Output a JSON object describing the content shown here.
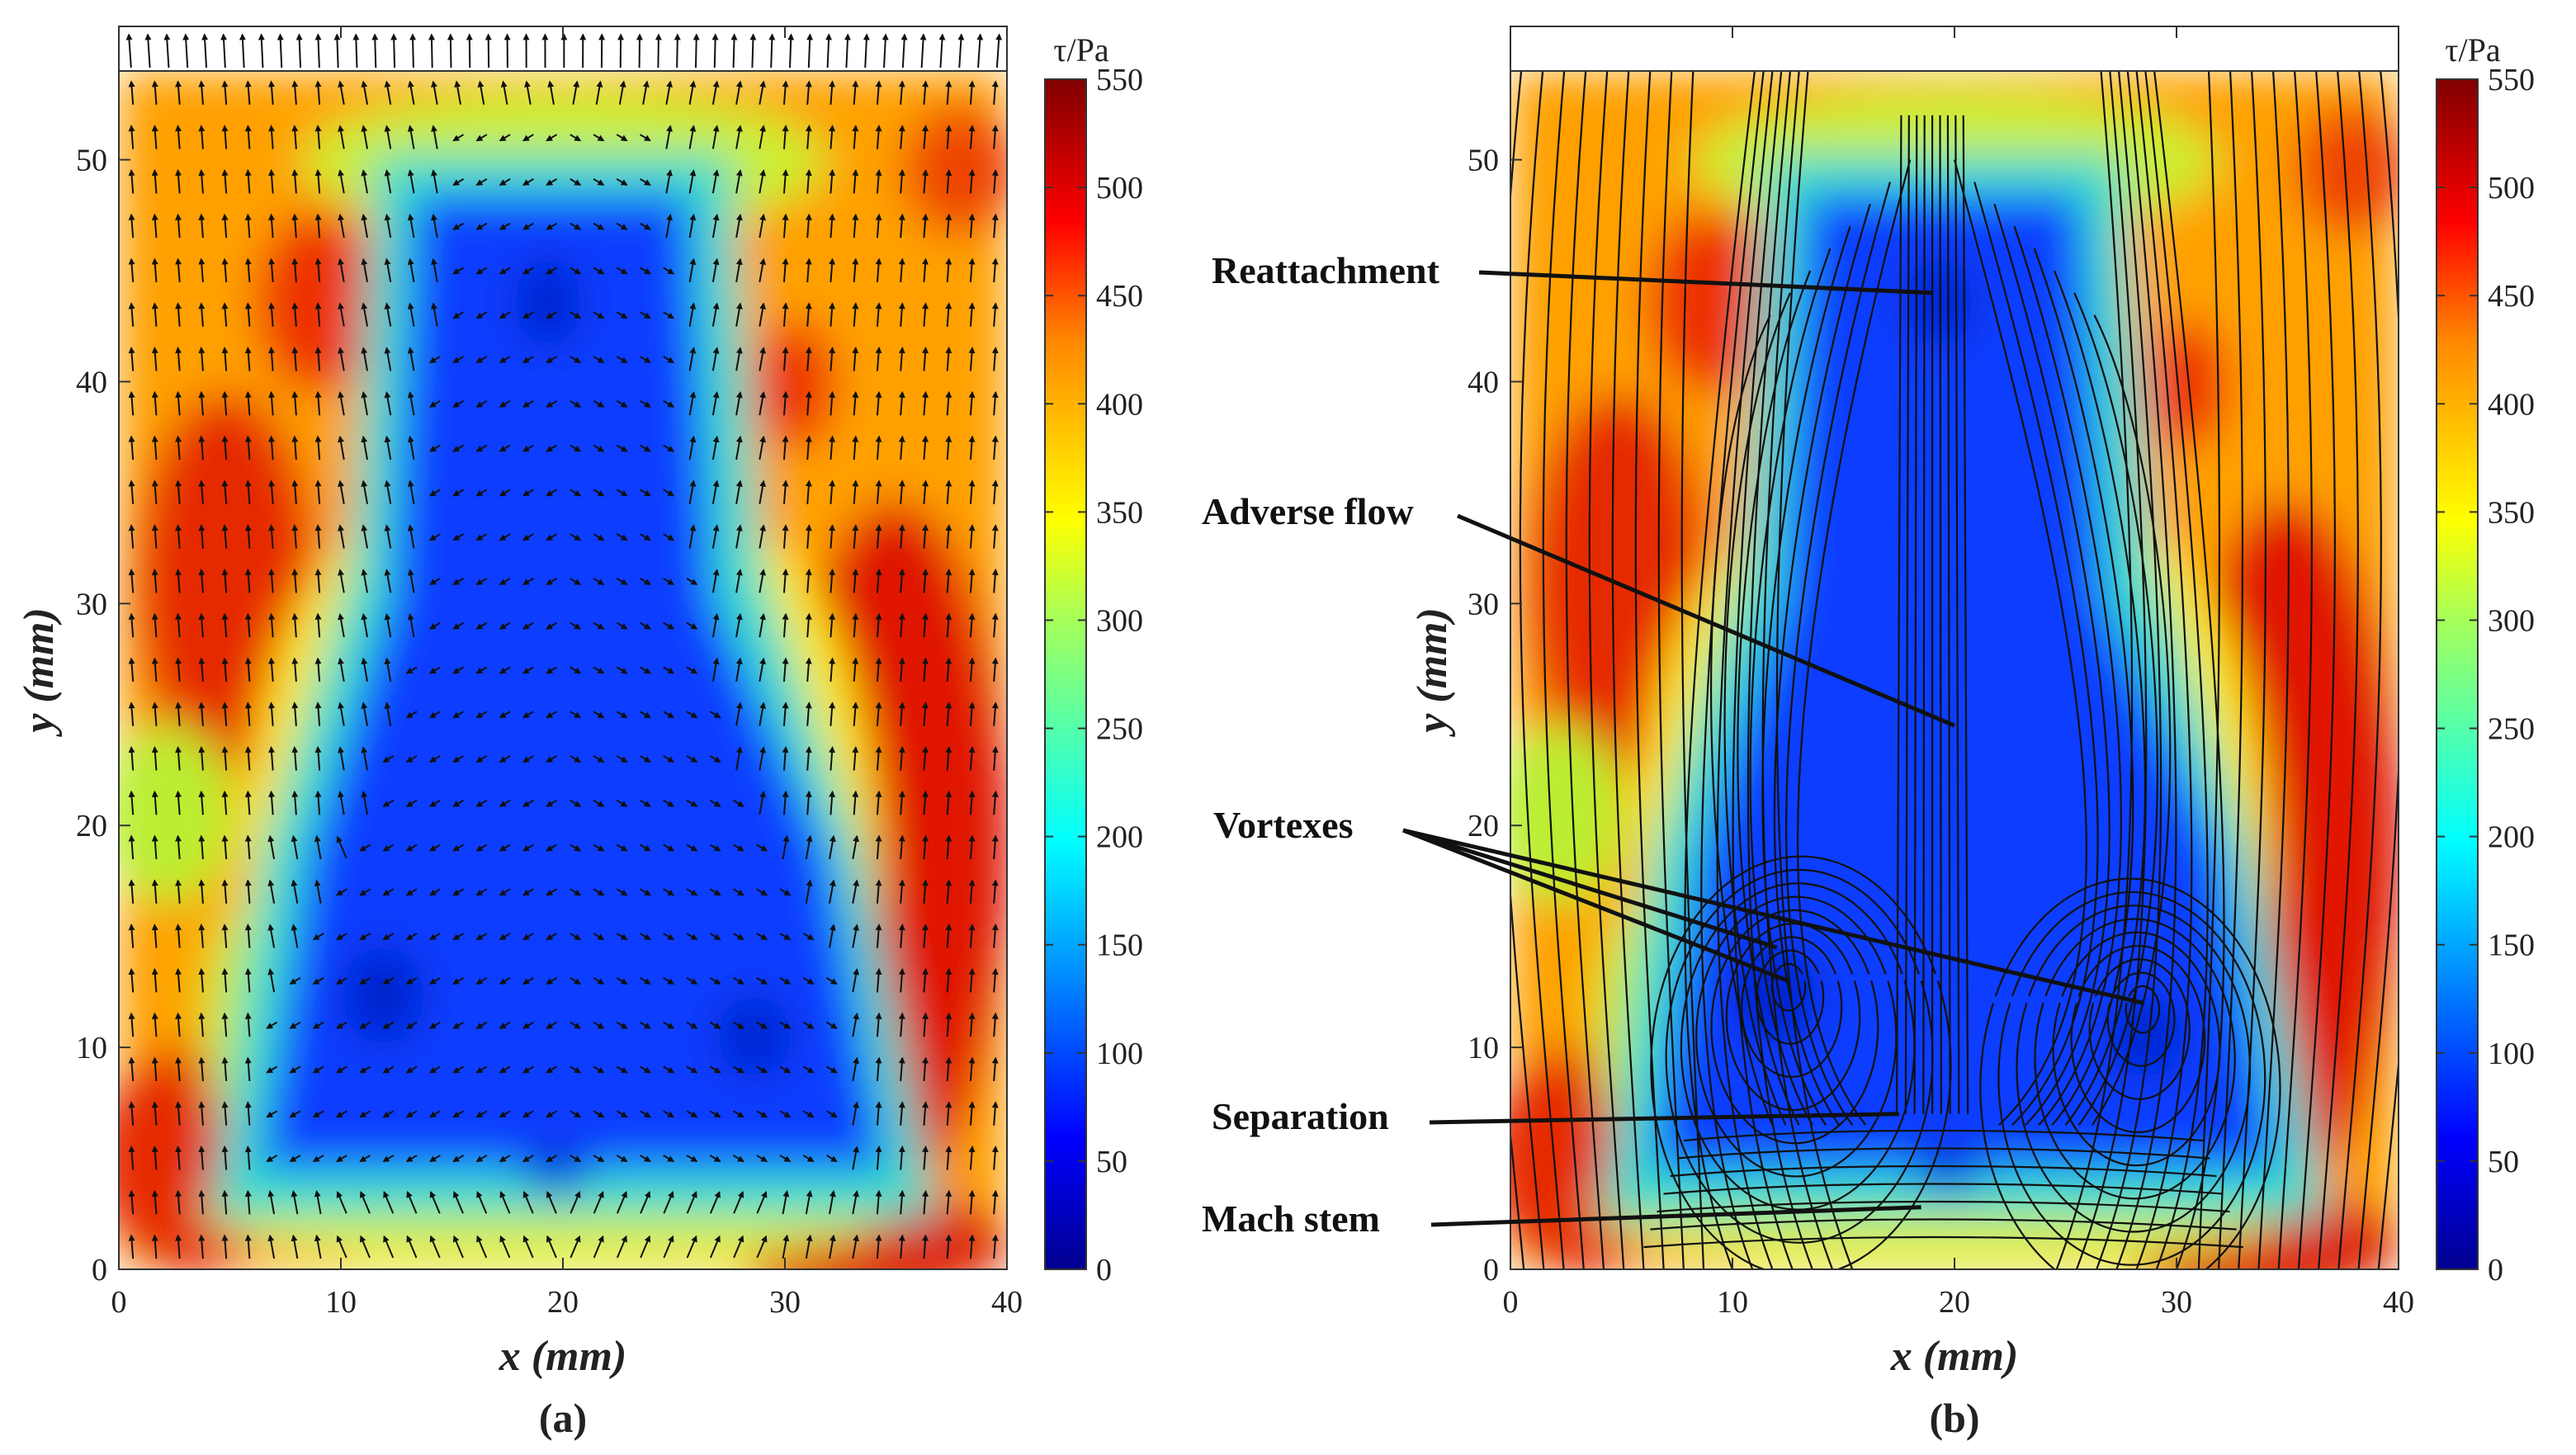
{
  "figure": {
    "panels": [
      {
        "id": "a",
        "label": "(a)",
        "type": "contour-vector",
        "xlabel": "x (mm)",
        "ylabel": "y (mm)",
        "xlim": [
          0,
          40
        ],
        "ylim": [
          0,
          54
        ],
        "xticks": [
          0,
          10,
          20,
          30,
          40
        ],
        "yticks": [
          0,
          10,
          20,
          30,
          40,
          50
        ],
        "colorbar": {
          "title": "τ/Pa",
          "min": 0,
          "max": 550,
          "ticks": [
            0,
            50,
            100,
            150,
            200,
            250,
            300,
            350,
            400,
            450,
            500,
            550
          ]
        },
        "overlay": "velocity vectors"
      },
      {
        "id": "b",
        "label": "(b)",
        "type": "contour-streamline",
        "xlabel": "x (mm)",
        "ylabel": "y (mm)",
        "xlim": [
          0,
          40
        ],
        "ylim": [
          0,
          54
        ],
        "xticks": [
          0,
          10,
          20,
          30,
          40
        ],
        "yticks": [
          0,
          10,
          20,
          30,
          40,
          50
        ],
        "colorbar": {
          "title": "τ/Pa",
          "min": 0,
          "max": 550,
          "ticks": [
            0,
            50,
            100,
            150,
            200,
            250,
            300,
            350,
            400,
            450,
            500,
            550
          ]
        },
        "overlay": "streamlines",
        "annotations": [
          {
            "text": "Reattachment",
            "target": [
              19,
              44
            ]
          },
          {
            "text": "Adverse flow",
            "target": [
              20,
              24.5
            ]
          },
          {
            "text": "Vortexes",
            "target": [
              12.5,
              13
            ]
          },
          {
            "text": "Separation",
            "target": [
              17.5,
              7
            ]
          },
          {
            "text": "Mach stem",
            "target": [
              18.5,
              2.8
            ]
          }
        ]
      }
    ]
  },
  "chart_data": [
    {
      "type": "heatmap",
      "panel": "(a)",
      "title": "",
      "quantity": "τ/Pa",
      "xlabel": "x (mm)",
      "ylabel": "y (mm)",
      "xlim": [
        0,
        40
      ],
      "ylim": [
        0,
        54
      ],
      "value_range": [
        0,
        550
      ],
      "overlay": "vectors",
      "regions": [
        {
          "name": "separation bubble core",
          "tau_approx": 60,
          "y_range": [
            4,
            51
          ],
          "x_range_at_y5": [
            6,
            33
          ],
          "x_range_at_y50": [
            14.5,
            24
          ]
        },
        {
          "name": "high shear band left",
          "tau_approx": 470,
          "center": [
            5,
            32
          ]
        },
        {
          "name": "high shear band right",
          "tau_approx": 500,
          "center": [
            36,
            20
          ]
        },
        {
          "name": "high shear band bottom-left",
          "tau_approx": 480,
          "center": [
            3,
            5
          ]
        },
        {
          "name": "high shear band bottom-right",
          "tau_approx": 480,
          "center": [
            36,
            2
          ]
        },
        {
          "name": "local peak upper-left",
          "tau_approx": 500,
          "center": [
            9,
            45
          ]
        },
        {
          "name": "local peak upper-right",
          "tau_approx": 500,
          "center": [
            30,
            40
          ]
        }
      ]
    },
    {
      "type": "heatmap",
      "panel": "(b)",
      "title": "",
      "quantity": "τ/Pa",
      "xlabel": "x (mm)",
      "ylabel": "y (mm)",
      "xlim": [
        0,
        40
      ],
      "ylim": [
        0,
        54
      ],
      "value_range": [
        0,
        550
      ],
      "overlay": "streamlines",
      "vortex_centers": [
        [
          12.5,
          13
        ],
        [
          28.5,
          12
        ]
      ],
      "reattachment_point": [
        19,
        44
      ],
      "separation_line_y": 7,
      "mach_stem_y": 2.8
    }
  ]
}
